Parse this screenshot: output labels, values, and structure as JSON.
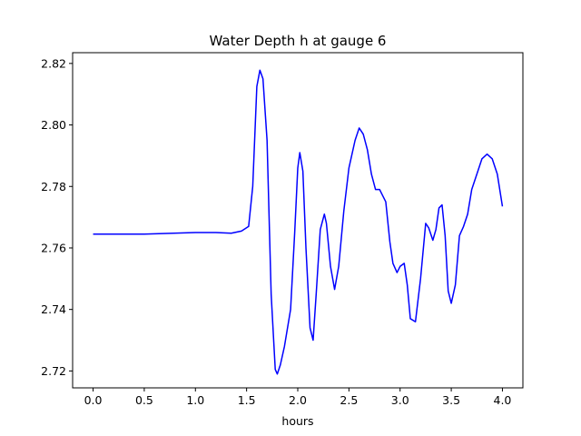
{
  "chart_data": {
    "type": "line",
    "title": "Water Depth h at gauge 6",
    "xlabel": "hours",
    "ylabel": "",
    "xlim": [
      -0.2,
      4.2
    ],
    "ylim": [
      2.7145,
      2.8235
    ],
    "xticks": [
      0.0,
      0.5,
      1.0,
      1.5,
      2.0,
      2.5,
      3.0,
      3.5,
      4.0
    ],
    "xtick_labels": [
      "0.0",
      "0.5",
      "1.0",
      "1.5",
      "2.0",
      "2.5",
      "3.0",
      "3.5",
      "4.0"
    ],
    "yticks": [
      2.72,
      2.74,
      2.76,
      2.78,
      2.8,
      2.82
    ],
    "ytick_labels": [
      "2.72",
      "2.74",
      "2.76",
      "2.78",
      "2.80",
      "2.82"
    ],
    "grid": false,
    "series": [
      {
        "color": "#0000ff",
        "x": [
          0.0,
          0.5,
          1.0,
          1.2,
          1.35,
          1.45,
          1.52,
          1.56,
          1.6,
          1.63,
          1.66,
          1.7,
          1.74,
          1.78,
          1.8,
          1.83,
          1.87,
          1.93,
          1.97,
          2.0,
          2.02,
          2.05,
          2.08,
          2.12,
          2.15,
          2.18,
          2.22,
          2.26,
          2.28,
          2.32,
          2.36,
          2.4,
          2.45,
          2.5,
          2.56,
          2.6,
          2.64,
          2.68,
          2.72,
          2.76,
          2.8,
          2.86,
          2.9,
          2.93,
          2.97,
          3.0,
          3.04,
          3.07,
          3.1,
          3.15,
          3.2,
          3.25,
          3.28,
          3.32,
          3.35,
          3.38,
          3.41,
          3.44,
          3.47,
          3.5,
          3.54,
          3.58,
          3.62,
          3.66,
          3.7,
          3.75,
          3.8,
          3.85,
          3.9,
          3.95,
          4.0
        ],
        "y": [
          2.7645,
          2.7645,
          2.765,
          2.765,
          2.7648,
          2.7655,
          2.767,
          2.78,
          2.8125,
          2.8178,
          2.815,
          2.795,
          2.745,
          2.7205,
          2.719,
          2.722,
          2.728,
          2.74,
          2.765,
          2.786,
          2.791,
          2.785,
          2.76,
          2.734,
          2.73,
          2.745,
          2.766,
          2.771,
          2.768,
          2.754,
          2.7465,
          2.754,
          2.772,
          2.786,
          2.795,
          2.799,
          2.797,
          2.792,
          2.784,
          2.779,
          2.779,
          2.775,
          2.762,
          2.755,
          2.752,
          2.754,
          2.755,
          2.748,
          2.737,
          2.736,
          2.75,
          2.768,
          2.7665,
          2.7625,
          2.766,
          2.773,
          2.774,
          2.764,
          2.746,
          2.742,
          2.748,
          2.764,
          2.767,
          2.771,
          2.779,
          2.784,
          2.789,
          2.7905,
          2.789,
          2.784,
          2.7735
        ]
      }
    ]
  }
}
